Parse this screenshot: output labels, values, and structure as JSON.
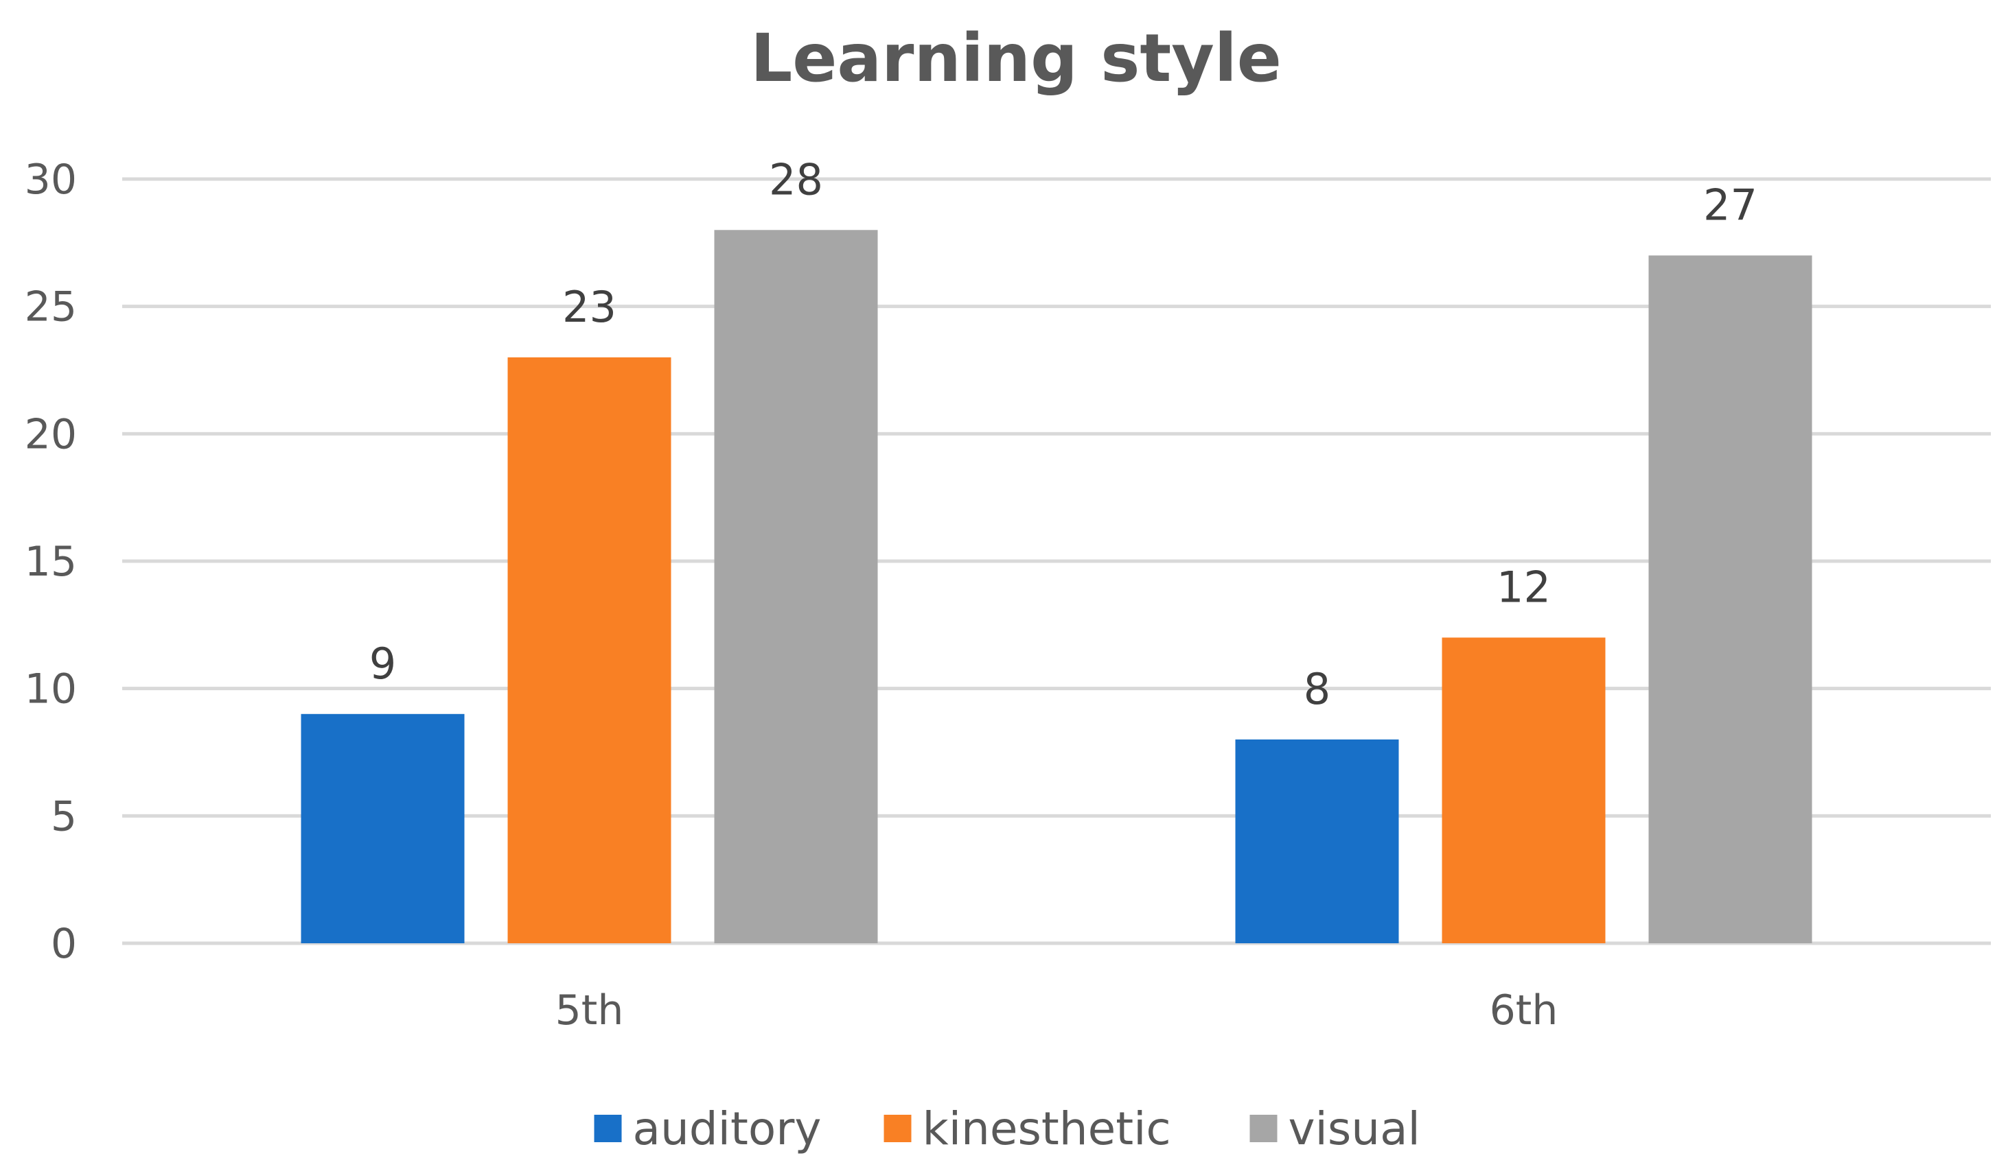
{
  "chart_data": {
    "type": "bar",
    "title": "Learning style",
    "xlabel": "",
    "ylabel": "",
    "categories": [
      "5th",
      "6th"
    ],
    "series": [
      {
        "name": "auditory",
        "values": [
          9,
          8
        ],
        "color": "#1870C8"
      },
      {
        "name": "kinesthetic",
        "values": [
          23,
          12
        ],
        "color": "#F98024"
      },
      {
        "name": "visual",
        "values": [
          28,
          27
        ],
        "color": "#A6A6A6"
      }
    ],
    "ylim": [
      0,
      30
    ],
    "yticks": [
      "0",
      "5",
      "10",
      "15",
      "20",
      "25",
      "30"
    ],
    "grid": true,
    "legend_position": "bottom",
    "data_labels": true
  }
}
